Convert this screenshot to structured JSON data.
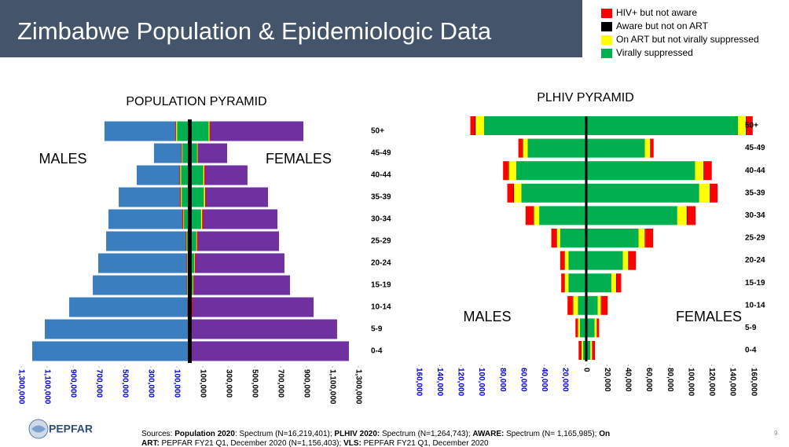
{
  "header": {
    "title": "Zimbabwe Population & Epidemiologic Data"
  },
  "chart_data": [
    {
      "type": "pyramid",
      "title": "POPULATION PYRAMID",
      "categories": [
        "0-4",
        "5-9",
        "10-14",
        "15-19",
        "20-24",
        "25-29",
        "30-34",
        "35-39",
        "40-44",
        "45-49",
        "50+"
      ],
      "series": [
        {
          "name": "MALES",
          "color": "#3a7ebf",
          "values": [
            -1215000,
            -1118000,
            -930000,
            -748000,
            -706000,
            -645000,
            -627000,
            -548000,
            -409000,
            -276000,
            -658000
          ]
        },
        {
          "name": "FEMALES",
          "color": "#7030a0",
          "values": [
            1227000,
            1136000,
            955000,
            773000,
            730000,
            688000,
            676000,
            603000,
            445000,
            288000,
            876000
          ]
        }
      ],
      "overlay_chart": 1,
      "xlim": [
        -1300000,
        1300000
      ],
      "xticks": [
        {
          "value": -1300000,
          "label": "1,300,000"
        },
        {
          "value": -1100000,
          "label": "1,100,000"
        },
        {
          "value": -900000,
          "label": "900,000"
        },
        {
          "value": -700000,
          "label": "700,000"
        },
        {
          "value": -500000,
          "label": "500,000"
        },
        {
          "value": -300000,
          "label": "300,000"
        },
        {
          "value": -100000,
          "label": "100,000"
        },
        {
          "value": 100000,
          "label": "100,000"
        },
        {
          "value": 300000,
          "label": "300,000"
        },
        {
          "value": 500000,
          "label": "500,000"
        },
        {
          "value": 700000,
          "label": "700,000"
        },
        {
          "value": 900000,
          "label": "900,000"
        },
        {
          "value": 1100000,
          "label": "1,100,000"
        },
        {
          "value": 1300000,
          "label": "1,300,000"
        }
      ],
      "left_tick_color": "#0000cc",
      "right_tick_color": "#000000"
    },
    {
      "type": "stacked_pyramid",
      "title": "PLHIV PYRAMID",
      "categories": [
        "0-4",
        "5-9",
        "10-14",
        "15-19",
        "20-24",
        "25-29",
        "30-34",
        "35-39",
        "40-44",
        "45-49",
        "50+"
      ],
      "side_labels": [
        "MALES",
        "FEMALES"
      ],
      "series": [
        {
          "name": "Virally suppressed",
          "color": "#00b050",
          "male_values": [
            -3000,
            -6000,
            -8000,
            -17000,
            -17000,
            -25000,
            -45000,
            -62000,
            -67000,
            -56000,
            -97700
          ],
          "female_values": [
            4000,
            8000,
            11000,
            24000,
            35000,
            50000,
            87000,
            108000,
            104000,
            56000,
            145000
          ]
        },
        {
          "name": "On ART but not virally suppressed",
          "color": "#ffff00",
          "male_values": [
            -1500,
            -2000,
            -4500,
            -3500,
            -3500,
            -3000,
            -5000,
            -7000,
            -7000,
            -4500,
            -8000
          ],
          "female_values": [
            1500,
            2000,
            3000,
            4500,
            5000,
            6000,
            9000,
            10000,
            8000,
            5000,
            7500
          ]
        },
        {
          "name": "Aware but not on ART",
          "color": "#000000",
          "male_values": [
            -300,
            -300,
            -400,
            -400,
            -400,
            -400,
            -500,
            -500,
            -500,
            -400,
            -600
          ],
          "female_values": [
            300,
            300,
            400,
            400,
            400,
            400,
            500,
            500,
            500,
            400,
            600
          ]
        },
        {
          "name": "HIV+ but not aware",
          "color": "#ff0000",
          "male_values": [
            -2500,
            -2000,
            -5000,
            -3000,
            -4000,
            -5000,
            -7500,
            -6000,
            -5000,
            -4000,
            -4500
          ],
          "female_values": [
            2500,
            2000,
            6000,
            4500,
            7000,
            7500,
            8000,
            7000,
            7500,
            3000,
            6000
          ]
        }
      ],
      "legend_order": [
        3,
        2,
        1,
        0
      ],
      "xlim": [
        -160000,
        160000
      ],
      "xticks": [
        {
          "value": -160000,
          "label": "160,000"
        },
        {
          "value": -140000,
          "label": "140,000"
        },
        {
          "value": -120000,
          "label": "120,000"
        },
        {
          "value": -100000,
          "label": "100,000"
        },
        {
          "value": -80000,
          "label": "80,000"
        },
        {
          "value": -60000,
          "label": "60,000"
        },
        {
          "value": -40000,
          "label": "40,000"
        },
        {
          "value": -20000,
          "label": "20,000"
        },
        0,
        {
          "value": 20000,
          "label": "20,000"
        },
        {
          "value": 40000,
          "label": "40,000"
        },
        {
          "value": 60000,
          "label": "60,000"
        },
        {
          "value": 80000,
          "label": "80,000"
        },
        {
          "value": 100000,
          "label": "100,000"
        },
        {
          "value": 120000,
          "label": "120,000"
        },
        {
          "value": 140000,
          "label": "140,000"
        },
        {
          "value": 160000,
          "label": "160,000"
        }
      ],
      "left_tick_color": "#0000cc",
      "right_tick_color": "#000000"
    }
  ],
  "footer": {
    "logo": "PEPFAR",
    "lines": [
      [
        {
          "text": "Sources: ",
          "bold": false
        },
        {
          "text": "Population 2020",
          "bold": true
        },
        {
          "text": ": Spectrum (N=16,219,401); ",
          "bold": false
        },
        {
          "text": "PLHIV 2020:",
          "bold": true
        },
        {
          "text": " Spectrum (N=1,264,743); ",
          "bold": false
        },
        {
          "text": "AWARE:",
          "bold": true
        },
        {
          "text": " Spectrum (N= 1,165,985); ",
          "bold": false
        },
        {
          "text": "On",
          "bold": true
        }
      ],
      [
        {
          "text": "ART:",
          "bold": true
        },
        {
          "text": " PEPFAR FY21 Q1, December 2020 (N=1,156,403); ",
          "bold": false
        },
        {
          "text": "VLS:",
          "bold": true
        },
        {
          "text": " PEPFAR FY21 Q1, December 2020",
          "bold": false
        }
      ]
    ],
    "page_number": "9"
  }
}
